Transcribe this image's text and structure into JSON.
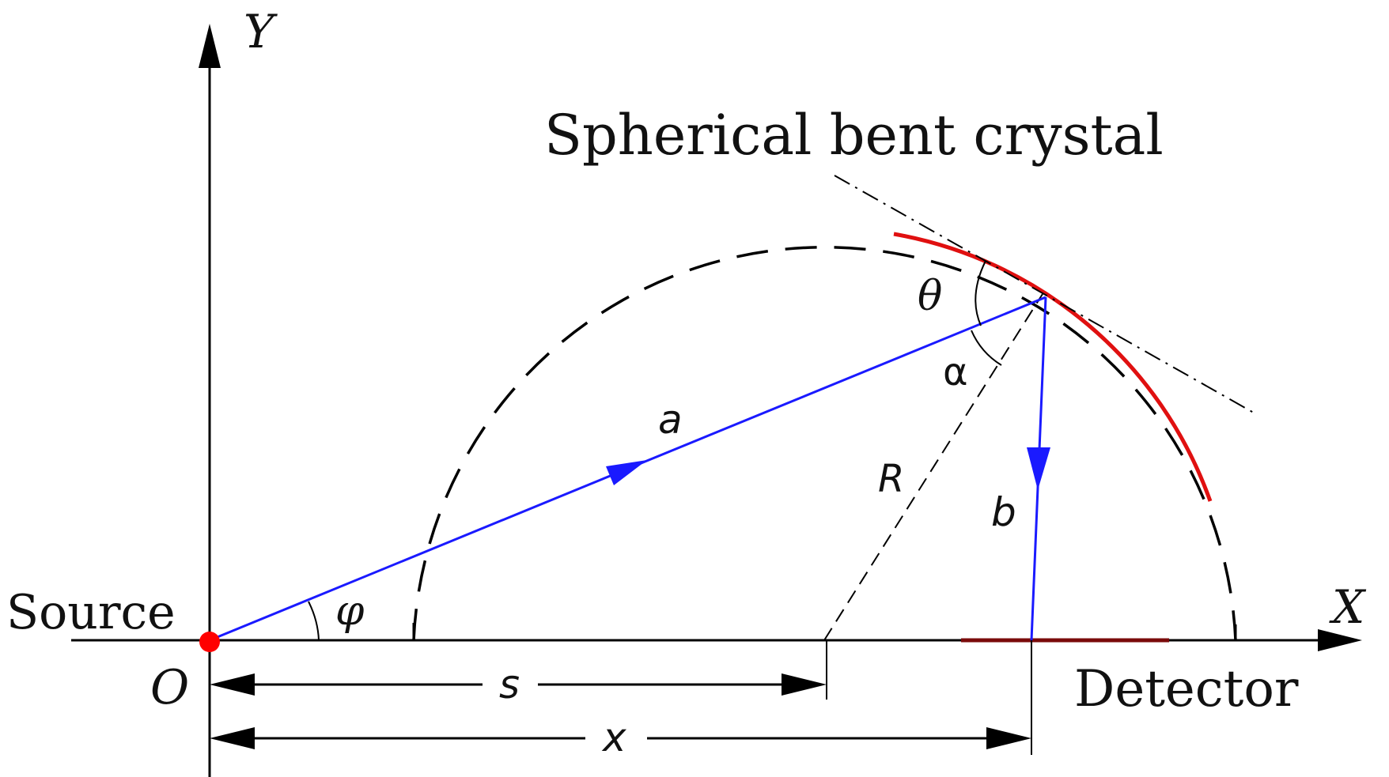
{
  "labels": {
    "y_axis": "Y",
    "x_axis": "X",
    "source": "Source",
    "origin": "O",
    "detector": "Detector",
    "crystal": "Spherical bent crystal",
    "theta": "θ",
    "alpha": "α",
    "phi": "φ",
    "a": "a",
    "b": "b",
    "R": "R",
    "s": "s",
    "x": "x"
  },
  "colors": {
    "axis": "#000000",
    "ray": "#1a1aff",
    "crystal": "#e01010",
    "detector": "#7a0a0a",
    "source_dot": "#ff0000"
  }
}
